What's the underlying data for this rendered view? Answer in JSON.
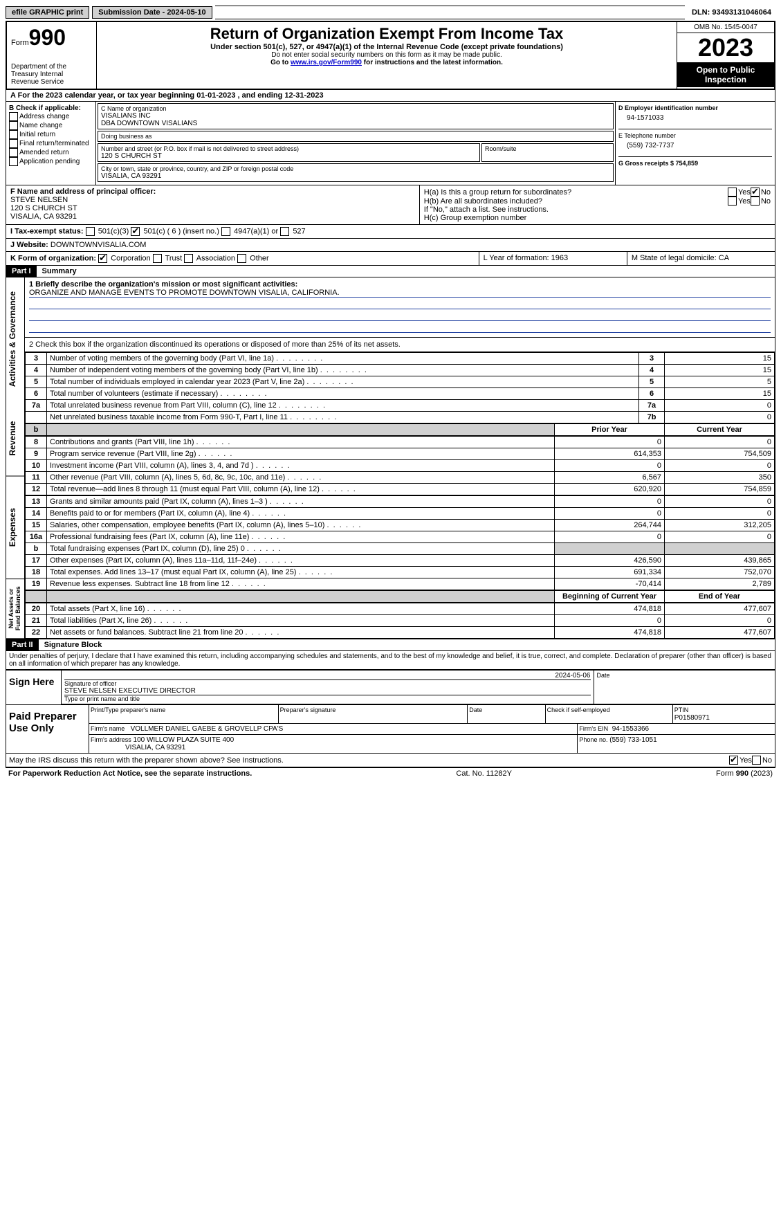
{
  "topbar": {
    "efile_btn": "efile GRAPHIC print",
    "submission_label": "Submission Date - 2024-05-10",
    "dln_label": "DLN: 93493131046064"
  },
  "header": {
    "form_prefix": "Form",
    "form_number": "990",
    "dept": "Department of the Treasury\nInternal Revenue Service",
    "title": "Return of Organization Exempt From Income Tax",
    "subtitle": "Under section 501(c), 527, or 4947(a)(1) of the Internal Revenue Code (except private foundations)",
    "note1": "Do not enter social security numbers on this form as it may be made public.",
    "note2_prefix": "Go to ",
    "note2_link": "www.irs.gov/Form990",
    "note2_suffix": " for instructions and the latest information.",
    "omb": "OMB No. 1545-0047",
    "year": "2023",
    "open": "Open to Public Inspection"
  },
  "line_a": "A For the 2023 calendar year, or tax year beginning 01-01-2023   , and ending 12-31-2023",
  "box_b": {
    "label": "B Check if applicable:",
    "items": [
      "Address change",
      "Name change",
      "Initial return",
      "Final return/terminated",
      "Amended return",
      "Application pending"
    ]
  },
  "box_c": {
    "label": "C Name of organization",
    "name": "VISALIANS INC",
    "dba": "DBA DOWNTOWN VISALIANS",
    "dba_label": "Doing business as",
    "addr_label": "Number and street (or P.O. box if mail is not delivered to street address)",
    "room_label": "Room/suite",
    "addr": "120 S CHURCH ST",
    "city_label": "City or town, state or province, country, and ZIP or foreign postal code",
    "city": "VISALIA, CA  93291"
  },
  "box_d": {
    "label": "D Employer identification number",
    "value": "94-1571033"
  },
  "box_e": {
    "label": "E Telephone number",
    "value": "(559) 732-7737"
  },
  "box_g": {
    "label": "G Gross receipts $ 754,859"
  },
  "box_f": {
    "label": "F  Name and address of principal officer:",
    "name": "STEVE NELSEN",
    "addr1": "120 S CHURCH ST",
    "addr2": "VISALIA, CA  93291"
  },
  "box_h": {
    "ha": "H(a)  Is this a group return for subordinates?",
    "hb": "H(b)  Are all subordinates included?",
    "hb_note": "If \"No,\" attach a list. See instructions.",
    "hc": "H(c)  Group exemption number"
  },
  "tax_exempt": {
    "label_i": "I   Tax-exempt status:",
    "opt1": "501(c)(3)",
    "opt2": "501(c) ( 6 ) (insert no.)",
    "opt3": "4947(a)(1) or",
    "opt4": "527"
  },
  "website": {
    "label": "J   Website:",
    "value": "DOWNTOWNVISALIA.COM"
  },
  "form_org": {
    "label": "K Form of organization:",
    "opts": [
      "Corporation",
      "Trust",
      "Association",
      "Other"
    ]
  },
  "box_l": "L Year of formation: 1963",
  "box_m": "M State of legal domicile: CA",
  "part1": {
    "header": "Part I",
    "title": "Summary",
    "line1_label": "1  Briefly describe the organization's mission or most significant activities:",
    "line1_value": "ORGANIZE AND MANAGE EVENTS TO PROMOTE DOWNTOWN VISALIA, CALIFORNIA.",
    "line2": "2   Check this box      if the organization discontinued its operations or disposed of more than 25% of its net assets.",
    "gov_rows": [
      {
        "n": "3",
        "lbl": "Number of voting members of the governing body (Part VI, line 1a)",
        "ref": "3",
        "val": "15"
      },
      {
        "n": "4",
        "lbl": "Number of independent voting members of the governing body (Part VI, line 1b)",
        "ref": "4",
        "val": "15"
      },
      {
        "n": "5",
        "lbl": "Total number of individuals employed in calendar year 2023 (Part V, line 2a)",
        "ref": "5",
        "val": "5"
      },
      {
        "n": "6",
        "lbl": "Total number of volunteers (estimate if necessary)",
        "ref": "6",
        "val": "15"
      },
      {
        "n": "7a",
        "lbl": "Total unrelated business revenue from Part VIII, column (C), line 12",
        "ref": "7a",
        "val": "0"
      },
      {
        "n": " ",
        "lbl": "Net unrelated business taxable income from Form 990-T, Part I, line 11",
        "ref": "7b",
        "val": "0"
      }
    ],
    "col_headers": {
      "prior": "Prior Year",
      "current": "Current Year"
    },
    "rev_rows": [
      {
        "n": "8",
        "lbl": "Contributions and grants (Part VIII, line 1h)",
        "p": "0",
        "c": "0"
      },
      {
        "n": "9",
        "lbl": "Program service revenue (Part VIII, line 2g)",
        "p": "614,353",
        "c": "754,509"
      },
      {
        "n": "10",
        "lbl": "Investment income (Part VIII, column (A), lines 3, 4, and 7d )",
        "p": "0",
        "c": "0"
      },
      {
        "n": "11",
        "lbl": "Other revenue (Part VIII, column (A), lines 5, 6d, 8c, 9c, 10c, and 11e)",
        "p": "6,567",
        "c": "350"
      },
      {
        "n": "12",
        "lbl": "Total revenue—add lines 8 through 11 (must equal Part VIII, column (A), line 12)",
        "p": "620,920",
        "c": "754,859"
      }
    ],
    "exp_rows": [
      {
        "n": "13",
        "lbl": "Grants and similar amounts paid (Part IX, column (A), lines 1–3 )",
        "p": "0",
        "c": "0"
      },
      {
        "n": "14",
        "lbl": "Benefits paid to or for members (Part IX, column (A), line 4)",
        "p": "0",
        "c": "0"
      },
      {
        "n": "15",
        "lbl": "Salaries, other compensation, employee benefits (Part IX, column (A), lines 5–10)",
        "p": "264,744",
        "c": "312,205"
      },
      {
        "n": "16a",
        "lbl": "Professional fundraising fees (Part IX, column (A), line 11e)",
        "p": "0",
        "c": "0"
      },
      {
        "n": "b",
        "lbl": "Total fundraising expenses (Part IX, column (D), line 25) 0",
        "p": "shade",
        "c": "shade"
      },
      {
        "n": "17",
        "lbl": "Other expenses (Part IX, column (A), lines 11a–11d, 11f–24e)",
        "p": "426,590",
        "c": "439,865"
      },
      {
        "n": "18",
        "lbl": "Total expenses. Add lines 13–17 (must equal Part IX, column (A), line 25)",
        "p": "691,334",
        "c": "752,070"
      },
      {
        "n": "19",
        "lbl": "Revenue less expenses. Subtract line 18 from line 12",
        "p": "-70,414",
        "c": "2,789"
      }
    ],
    "na_headers": {
      "begin": "Beginning of Current Year",
      "end": "End of Year"
    },
    "na_rows": [
      {
        "n": "20",
        "lbl": "Total assets (Part X, line 16)",
        "p": "474,818",
        "c": "477,607"
      },
      {
        "n": "21",
        "lbl": "Total liabilities (Part X, line 26)",
        "p": "0",
        "c": "0"
      },
      {
        "n": "22",
        "lbl": "Net assets or fund balances. Subtract line 21 from line 20",
        "p": "474,818",
        "c": "477,607"
      }
    ],
    "vlabels": {
      "gov": "Activities & Governance",
      "rev": "Revenue",
      "exp": "Expenses",
      "na": "Net Assets or Fund Balances"
    }
  },
  "part2": {
    "header": "Part II",
    "title": "Signature Block",
    "declaration": "Under penalties of perjury, I declare that I have examined this return, including accompanying schedules and statements, and to the best of my knowledge and belief, it is true, correct, and complete. Declaration of preparer (other than officer) is based on all information of which preparer has any knowledge.",
    "sign_here": "Sign Here",
    "sig_date": "2024-05-06",
    "sig_officer_label": "Signature of officer",
    "sig_officer": "STEVE NELSEN  EXECUTIVE DIRECTOR",
    "sig_type_label": "Type or print name and title",
    "date_label": "Date",
    "paid_prep": "Paid Preparer Use Only",
    "prep_name_label": "Print/Type preparer's name",
    "prep_sig_label": "Preparer's signature",
    "self_emp_label": "Check       if self-employed",
    "ptin_label": "PTIN",
    "ptin": "P01580971",
    "firm_name_label": "Firm's name",
    "firm_name": "VOLLMER DANIEL GAEBE & GROVELLP CPA'S",
    "firm_ein_label": "Firm's EIN",
    "firm_ein": "94-1553366",
    "firm_addr_label": "Firm's address",
    "firm_addr1": "100 WILLOW PLAZA SUITE 400",
    "firm_addr2": "VISALIA, CA  93291",
    "phone_label": "Phone no.",
    "phone": "(559) 733-1051",
    "discuss": "May the IRS discuss this return with the preparer shown above? See Instructions."
  },
  "footer": {
    "pra": "For Paperwork Reduction Act Notice, see the separate instructions.",
    "cat": "Cat. No. 11282Y",
    "form": "Form 990 (2023)"
  }
}
